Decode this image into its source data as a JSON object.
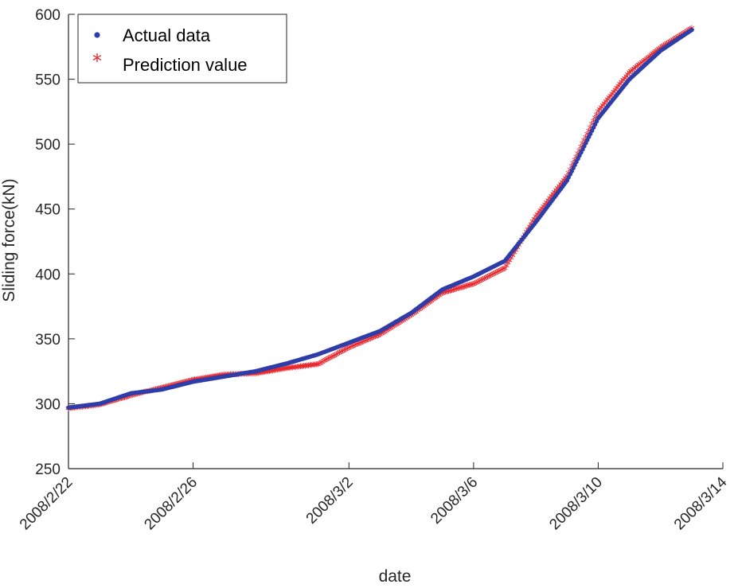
{
  "chart_data": {
    "type": "scatter",
    "title": "",
    "xlabel": "date",
    "ylabel": "Sliding force(kN)",
    "x_type": "date",
    "xlim": [
      "2008-02-22",
      "2008-03-14"
    ],
    "x_ticks": [
      {
        "date": "2008-02-22",
        "label": "2008/2/22"
      },
      {
        "date": "2008-02-26",
        "label": "2008/2/26"
      },
      {
        "date": "2008-03-02",
        "label": "2008/3/2"
      },
      {
        "date": "2008-03-06",
        "label": "2008/3/6"
      },
      {
        "date": "2008-03-10",
        "label": "2008/3/10"
      },
      {
        "date": "2008-03-14",
        "label": "2008/3/14"
      }
    ],
    "ylim": [
      250,
      600
    ],
    "y_ticks": [
      250,
      300,
      350,
      400,
      450,
      500,
      550,
      600
    ],
    "grid": false,
    "legend_position": "top-left",
    "series": [
      {
        "name": "Actual data",
        "marker": "dot",
        "color": "#2e3da8",
        "points": [
          [
            "2008-02-22",
            297
          ],
          [
            "2008-02-23",
            300
          ],
          [
            "2008-02-24",
            308
          ],
          [
            "2008-02-25",
            311
          ],
          [
            "2008-02-26",
            317
          ],
          [
            "2008-02-27",
            321
          ],
          [
            "2008-02-28",
            325
          ],
          [
            "2008-02-29",
            331
          ],
          [
            "2008-03-01",
            338
          ],
          [
            "2008-03-02",
            347
          ],
          [
            "2008-03-03",
            356
          ],
          [
            "2008-03-04",
            370
          ],
          [
            "2008-03-05",
            388
          ],
          [
            "2008-03-06",
            398
          ],
          [
            "2008-03-07",
            410
          ],
          [
            "2008-03-08",
            440
          ],
          [
            "2008-03-09",
            472
          ],
          [
            "2008-03-10",
            520
          ],
          [
            "2008-03-11",
            550
          ],
          [
            "2008-03-12",
            572
          ],
          [
            "2008-03-13",
            588
          ]
        ]
      },
      {
        "name": "Prediction value",
        "marker": "star",
        "color": "#e8242b",
        "points": [
          [
            "2008-02-22",
            296
          ],
          [
            "2008-02-23",
            299
          ],
          [
            "2008-02-24",
            306
          ],
          [
            "2008-02-25",
            312
          ],
          [
            "2008-02-26",
            318
          ],
          [
            "2008-02-27",
            322
          ],
          [
            "2008-02-28",
            323
          ],
          [
            "2008-02-29",
            327
          ],
          [
            "2008-03-01",
            330
          ],
          [
            "2008-03-02",
            343
          ],
          [
            "2008-03-03",
            353
          ],
          [
            "2008-03-04",
            368
          ],
          [
            "2008-03-05",
            385
          ],
          [
            "2008-03-06",
            392
          ],
          [
            "2008-03-07",
            404
          ],
          [
            "2008-03-08",
            444
          ],
          [
            "2008-03-09",
            475
          ],
          [
            "2008-03-10",
            525
          ],
          [
            "2008-03-11",
            555
          ],
          [
            "2008-03-12",
            574
          ],
          [
            "2008-03-13",
            589
          ]
        ]
      }
    ]
  }
}
